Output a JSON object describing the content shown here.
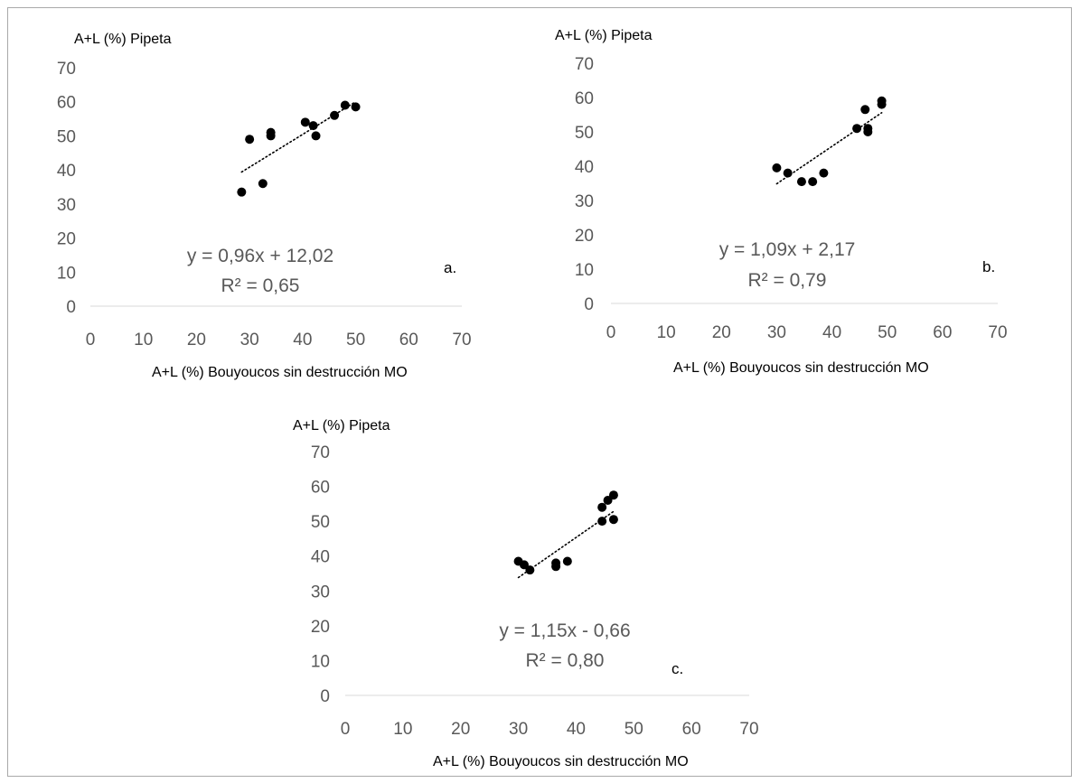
{
  "chart_data": [
    {
      "type": "scatter",
      "panel_label": "a.",
      "ylabel": "A+L (%) Pipeta",
      "xlabel": "A+L (%) Bouyoucos sin destrucción MO",
      "xlim": [
        0,
        70
      ],
      "ylim": [
        0,
        70
      ],
      "xticks": [
        "0",
        "10",
        "20",
        "30",
        "40",
        "50",
        "60",
        "70"
      ],
      "yticks": [
        "0",
        "10",
        "20",
        "30",
        "40",
        "50",
        "60",
        "70"
      ],
      "points": [
        [
          28.5,
          33.5
        ],
        [
          30,
          49
        ],
        [
          32.5,
          36
        ],
        [
          34,
          50
        ],
        [
          34,
          51
        ],
        [
          40.5,
          54
        ],
        [
          42,
          53
        ],
        [
          42.5,
          50
        ],
        [
          46,
          56
        ],
        [
          48,
          59
        ],
        [
          50,
          58.5
        ]
      ],
      "trendline": {
        "slope": 0.96,
        "intercept": 12.02,
        "x_range": [
          28.5,
          50
        ],
        "style": "dotted"
      },
      "equation": "y = 0,96x + 12,02",
      "r2": "R² = 0,65"
    },
    {
      "type": "scatter",
      "panel_label": "b.",
      "ylabel": "A+L (%) Pipeta",
      "xlabel": "A+L (%) Bouyoucos sin destrucción MO",
      "xlim": [
        0,
        70
      ],
      "ylim": [
        0,
        70
      ],
      "xticks": [
        "0",
        "10",
        "20",
        "30",
        "40",
        "50",
        "60",
        "70"
      ],
      "yticks": [
        "0",
        "10",
        "20",
        "30",
        "40",
        "50",
        "60",
        "70"
      ],
      "points": [
        [
          30,
          39.5
        ],
        [
          32,
          38
        ],
        [
          34.5,
          35.5
        ],
        [
          36.5,
          35.5
        ],
        [
          38.5,
          38
        ],
        [
          44.5,
          51
        ],
        [
          46,
          56.5
        ],
        [
          46.5,
          50
        ],
        [
          46.5,
          51
        ],
        [
          49,
          58
        ],
        [
          49,
          59
        ]
      ],
      "trendline": {
        "slope": 1.09,
        "intercept": 2.17,
        "x_range": [
          30,
          49
        ],
        "style": "dotted"
      },
      "equation": "y = 1,09x + 2,17",
      "r2": "R² = 0,79"
    },
    {
      "type": "scatter",
      "panel_label": "c.",
      "ylabel": "A+L (%) Pipeta",
      "xlabel": "A+L (%) Bouyoucos sin destrucción MO",
      "xlim": [
        0,
        70
      ],
      "ylim": [
        0,
        70
      ],
      "xticks": [
        "0",
        "10",
        "20",
        "30",
        "40",
        "50",
        "60",
        "70"
      ],
      "yticks": [
        "0",
        "10",
        "20",
        "30",
        "40",
        "50",
        "60",
        "70"
      ],
      "points": [
        [
          30,
          38.5
        ],
        [
          31,
          37.5
        ],
        [
          32,
          36
        ],
        [
          36.5,
          37
        ],
        [
          36.5,
          38
        ],
        [
          38.5,
          38.5
        ],
        [
          44.5,
          50
        ],
        [
          44.5,
          54
        ],
        [
          45.5,
          56
        ],
        [
          46.5,
          50.5
        ],
        [
          46.5,
          57.5
        ]
      ],
      "trendline": {
        "slope": 1.15,
        "intercept": -0.66,
        "x_range": [
          30,
          46.5
        ],
        "style": "dotted"
      },
      "equation": "y = 1,15x - 0,66",
      "r2": "R² = 0,80"
    }
  ]
}
